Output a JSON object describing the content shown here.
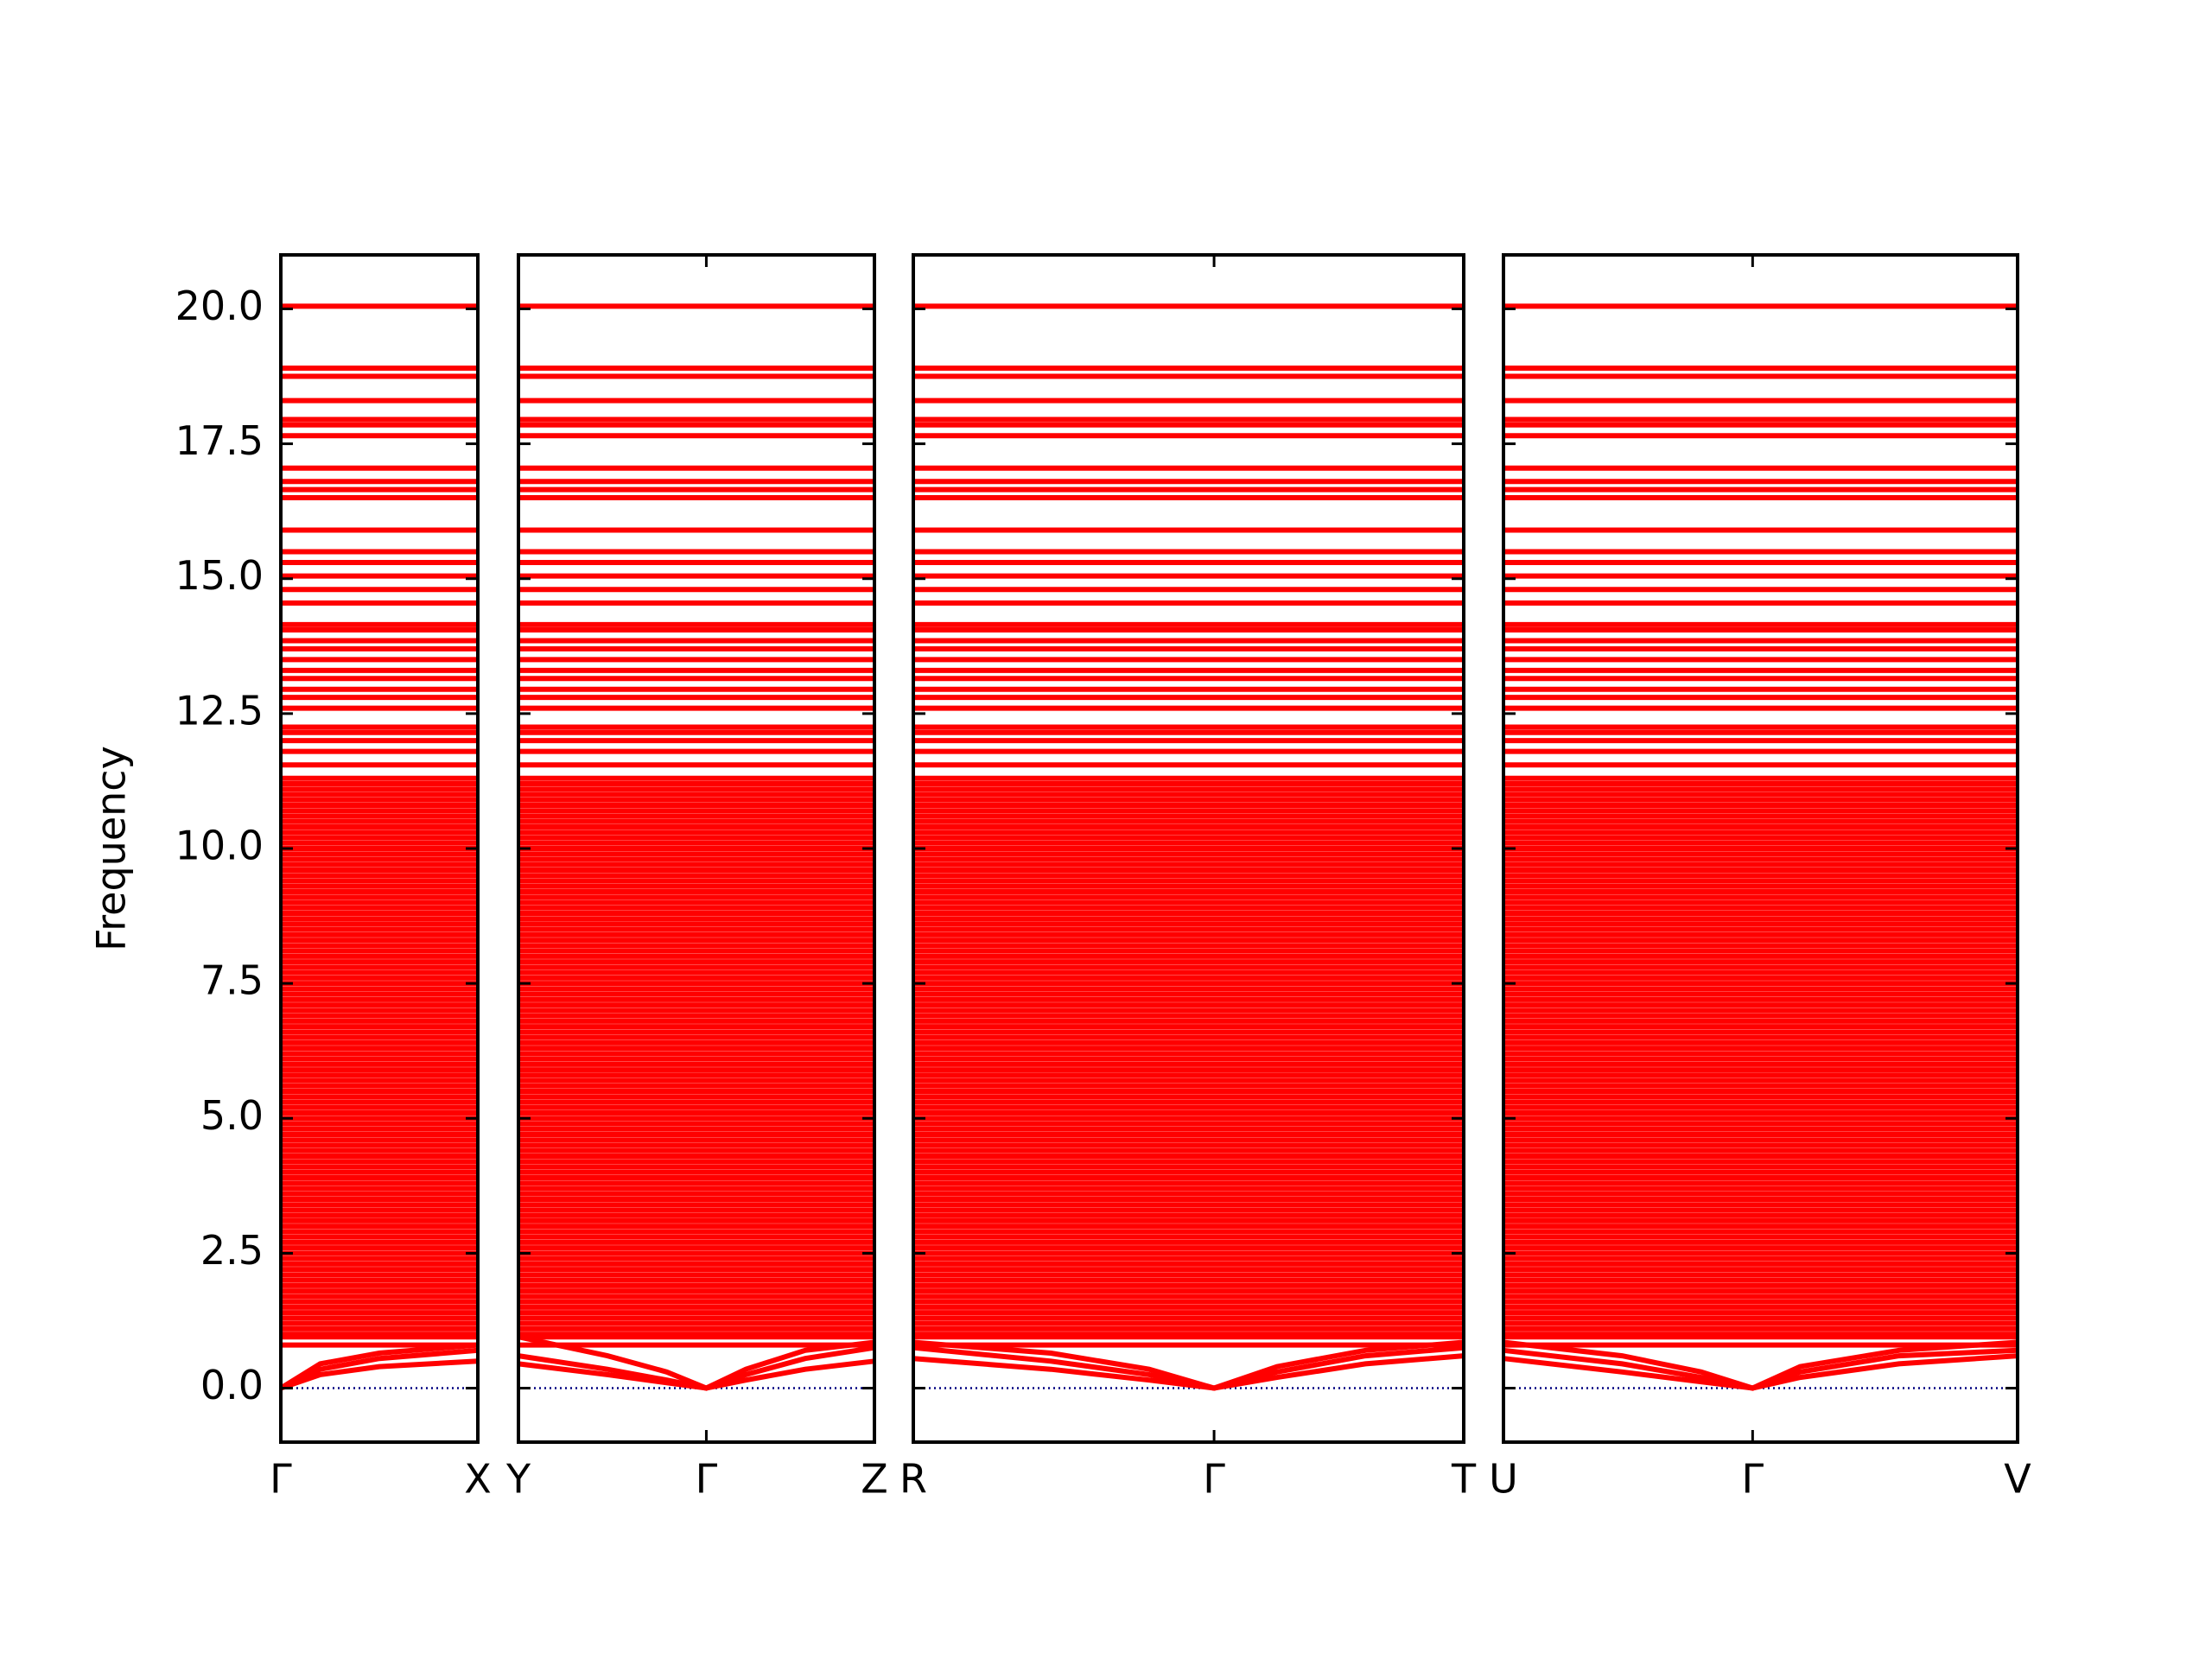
{
  "chart_data": {
    "type": "bands",
    "ylabel": "Frequency",
    "ylim": [
      -1,
      21
    ],
    "yticks": [
      {
        "value": 0,
        "label": "0.0"
      },
      {
        "value": 2.5,
        "label": "2.5"
      },
      {
        "value": 5,
        "label": "5.0"
      },
      {
        "value": 7.5,
        "label": "7.5"
      },
      {
        "value": 10,
        "label": "10.0"
      },
      {
        "value": 12.5,
        "label": "12.5"
      },
      {
        "value": 15,
        "label": "15.0"
      },
      {
        "value": 17.5,
        "label": "17.5"
      },
      {
        "value": 20,
        "label": "20.0"
      }
    ],
    "panels": [
      {
        "xlim": [
          0,
          1
        ],
        "xticks": [
          {
            "value": 0,
            "label": "Γ"
          },
          {
            "value": 1,
            "label": "X"
          }
        ]
      },
      {
        "xlim": [
          1,
          2.8
        ],
        "xticks": [
          {
            "value": 1,
            "label": "Y"
          },
          {
            "value": 1.95,
            "label": "Γ"
          },
          {
            "value": 2.8,
            "label": "Z"
          }
        ]
      },
      {
        "xlim": [
          2.8,
          5.6
        ],
        "xticks": [
          {
            "value": 2.8,
            "label": "R"
          },
          {
            "value": 4.33,
            "label": "Γ"
          },
          {
            "value": 5.6,
            "label": "T"
          }
        ]
      },
      {
        "xlim": [
          5.6,
          8.2
        ],
        "xticks": [
          {
            "value": 5.6,
            "label": "U"
          },
          {
            "value": 6.86,
            "label": "Γ"
          },
          {
            "value": 8.2,
            "label": "V"
          }
        ]
      }
    ],
    "color": "#ff0000",
    "flat_bands": [
      20.05,
      18.9,
      18.75,
      18.3,
      17.95,
      17.85,
      17.65,
      17.05,
      16.8,
      16.65,
      16.5,
      15.9,
      15.5,
      15.3,
      15.05,
      14.8,
      14.55,
      14.15,
      14.05,
      13.85,
      13.7,
      13.5,
      13.3,
      13.15,
      12.95,
      12.8,
      12.6,
      12.25,
      12.15,
      12.0,
      11.8,
      11.55,
      11.3,
      11.2,
      11.1,
      11.0,
      10.9,
      10.8,
      10.7,
      10.6,
      10.5,
      10.4,
      10.3,
      10.2,
      10.1,
      10.0,
      9.9,
      9.8,
      9.7,
      9.6,
      9.5,
      9.4,
      9.3,
      9.2,
      9.1,
      9.0,
      8.9,
      8.8,
      8.7,
      8.6,
      8.5,
      8.4,
      8.3,
      8.2,
      8.1,
      8.0,
      7.9,
      7.8,
      7.7,
      7.6,
      7.5,
      7.4,
      7.3,
      7.2,
      7.1,
      7.0,
      6.9,
      6.8,
      6.7,
      6.6,
      6.5,
      6.4,
      6.3,
      6.2,
      6.1,
      6.0,
      5.9,
      5.8,
      5.7,
      5.6,
      5.5,
      5.4,
      5.3,
      5.2,
      5.1,
      5.0,
      4.9,
      4.8,
      4.7,
      4.6,
      4.5,
      4.4,
      4.3,
      4.2,
      4.1,
      4.0,
      3.9,
      3.8,
      3.7,
      3.6,
      3.5,
      3.4,
      3.3,
      3.2,
      3.1,
      3.0,
      2.9,
      2.8,
      2.7,
      2.6,
      2.5,
      2.4,
      2.3,
      2.2,
      2.1,
      2.0,
      1.9,
      1.8,
      1.7,
      1.6,
      1.5,
      1.4,
      1.3,
      1.2,
      1.1,
      1.0,
      0.95,
      0.8
    ],
    "series": [
      {
        "x": [
          0,
          0.2,
          0.5,
          1,
          1,
          1,
          1.45,
          1.75,
          1.95,
          2.15,
          2.45,
          2.8,
          2.8,
          2.8,
          3.5,
          4.0,
          4.33,
          4.65,
          5.1,
          5.6,
          5.6,
          5.6,
          6.2,
          6.6,
          6.86,
          7.1,
          7.6,
          8.2
        ],
        "values": [
          0,
          0.25,
          0.4,
          0.5,
          null,
          0.45,
          0.25,
          0.1,
          0,
          0.15,
          0.35,
          0.5,
          null,
          0.55,
          0.35,
          0.15,
          0,
          0.2,
          0.45,
          0.6,
          null,
          0.55,
          0.3,
          0.12,
          0,
          0.2,
          0.45,
          0.6
        ]
      },
      {
        "x": [
          0,
          0.2,
          0.5,
          1,
          1,
          1,
          1.45,
          1.75,
          1.95,
          2.15,
          2.45,
          2.8,
          2.8,
          2.8,
          3.5,
          4.0,
          4.33,
          4.65,
          5.1,
          5.6,
          5.6,
          5.6,
          6.2,
          6.6,
          6.86,
          7.1,
          7.6,
          8.2
        ],
        "values": [
          0,
          0.35,
          0.55,
          0.7,
          null,
          0.6,
          0.35,
          0.15,
          0,
          0.25,
          0.55,
          0.75,
          null,
          0.75,
          0.5,
          0.25,
          0,
          0.3,
          0.6,
          0.75,
          null,
          0.7,
          0.45,
          0.2,
          0,
          0.3,
          0.6,
          0.7
        ]
      },
      {
        "x": [
          0,
          0.2,
          0.5,
          1,
          1,
          1,
          1.45,
          1.75,
          1.95,
          2.15,
          2.45,
          2.8,
          2.8,
          2.8,
          3.5,
          4.0,
          4.33,
          4.65,
          5.1,
          5.6,
          5.6,
          5.6,
          6.2,
          6.6,
          6.86,
          7.1,
          7.6,
          8.2
        ],
        "values": [
          0,
          0.45,
          0.65,
          0.8,
          null,
          0.95,
          0.6,
          0.3,
          0,
          0.35,
          0.7,
          0.85,
          null,
          0.85,
          0.65,
          0.35,
          0,
          0.4,
          0.7,
          0.85,
          null,
          0.85,
          0.6,
          0.3,
          0,
          0.4,
          0.7,
          0.85
        ]
      }
    ],
    "zero_line": 0,
    "zero_line_color": "#000080"
  }
}
